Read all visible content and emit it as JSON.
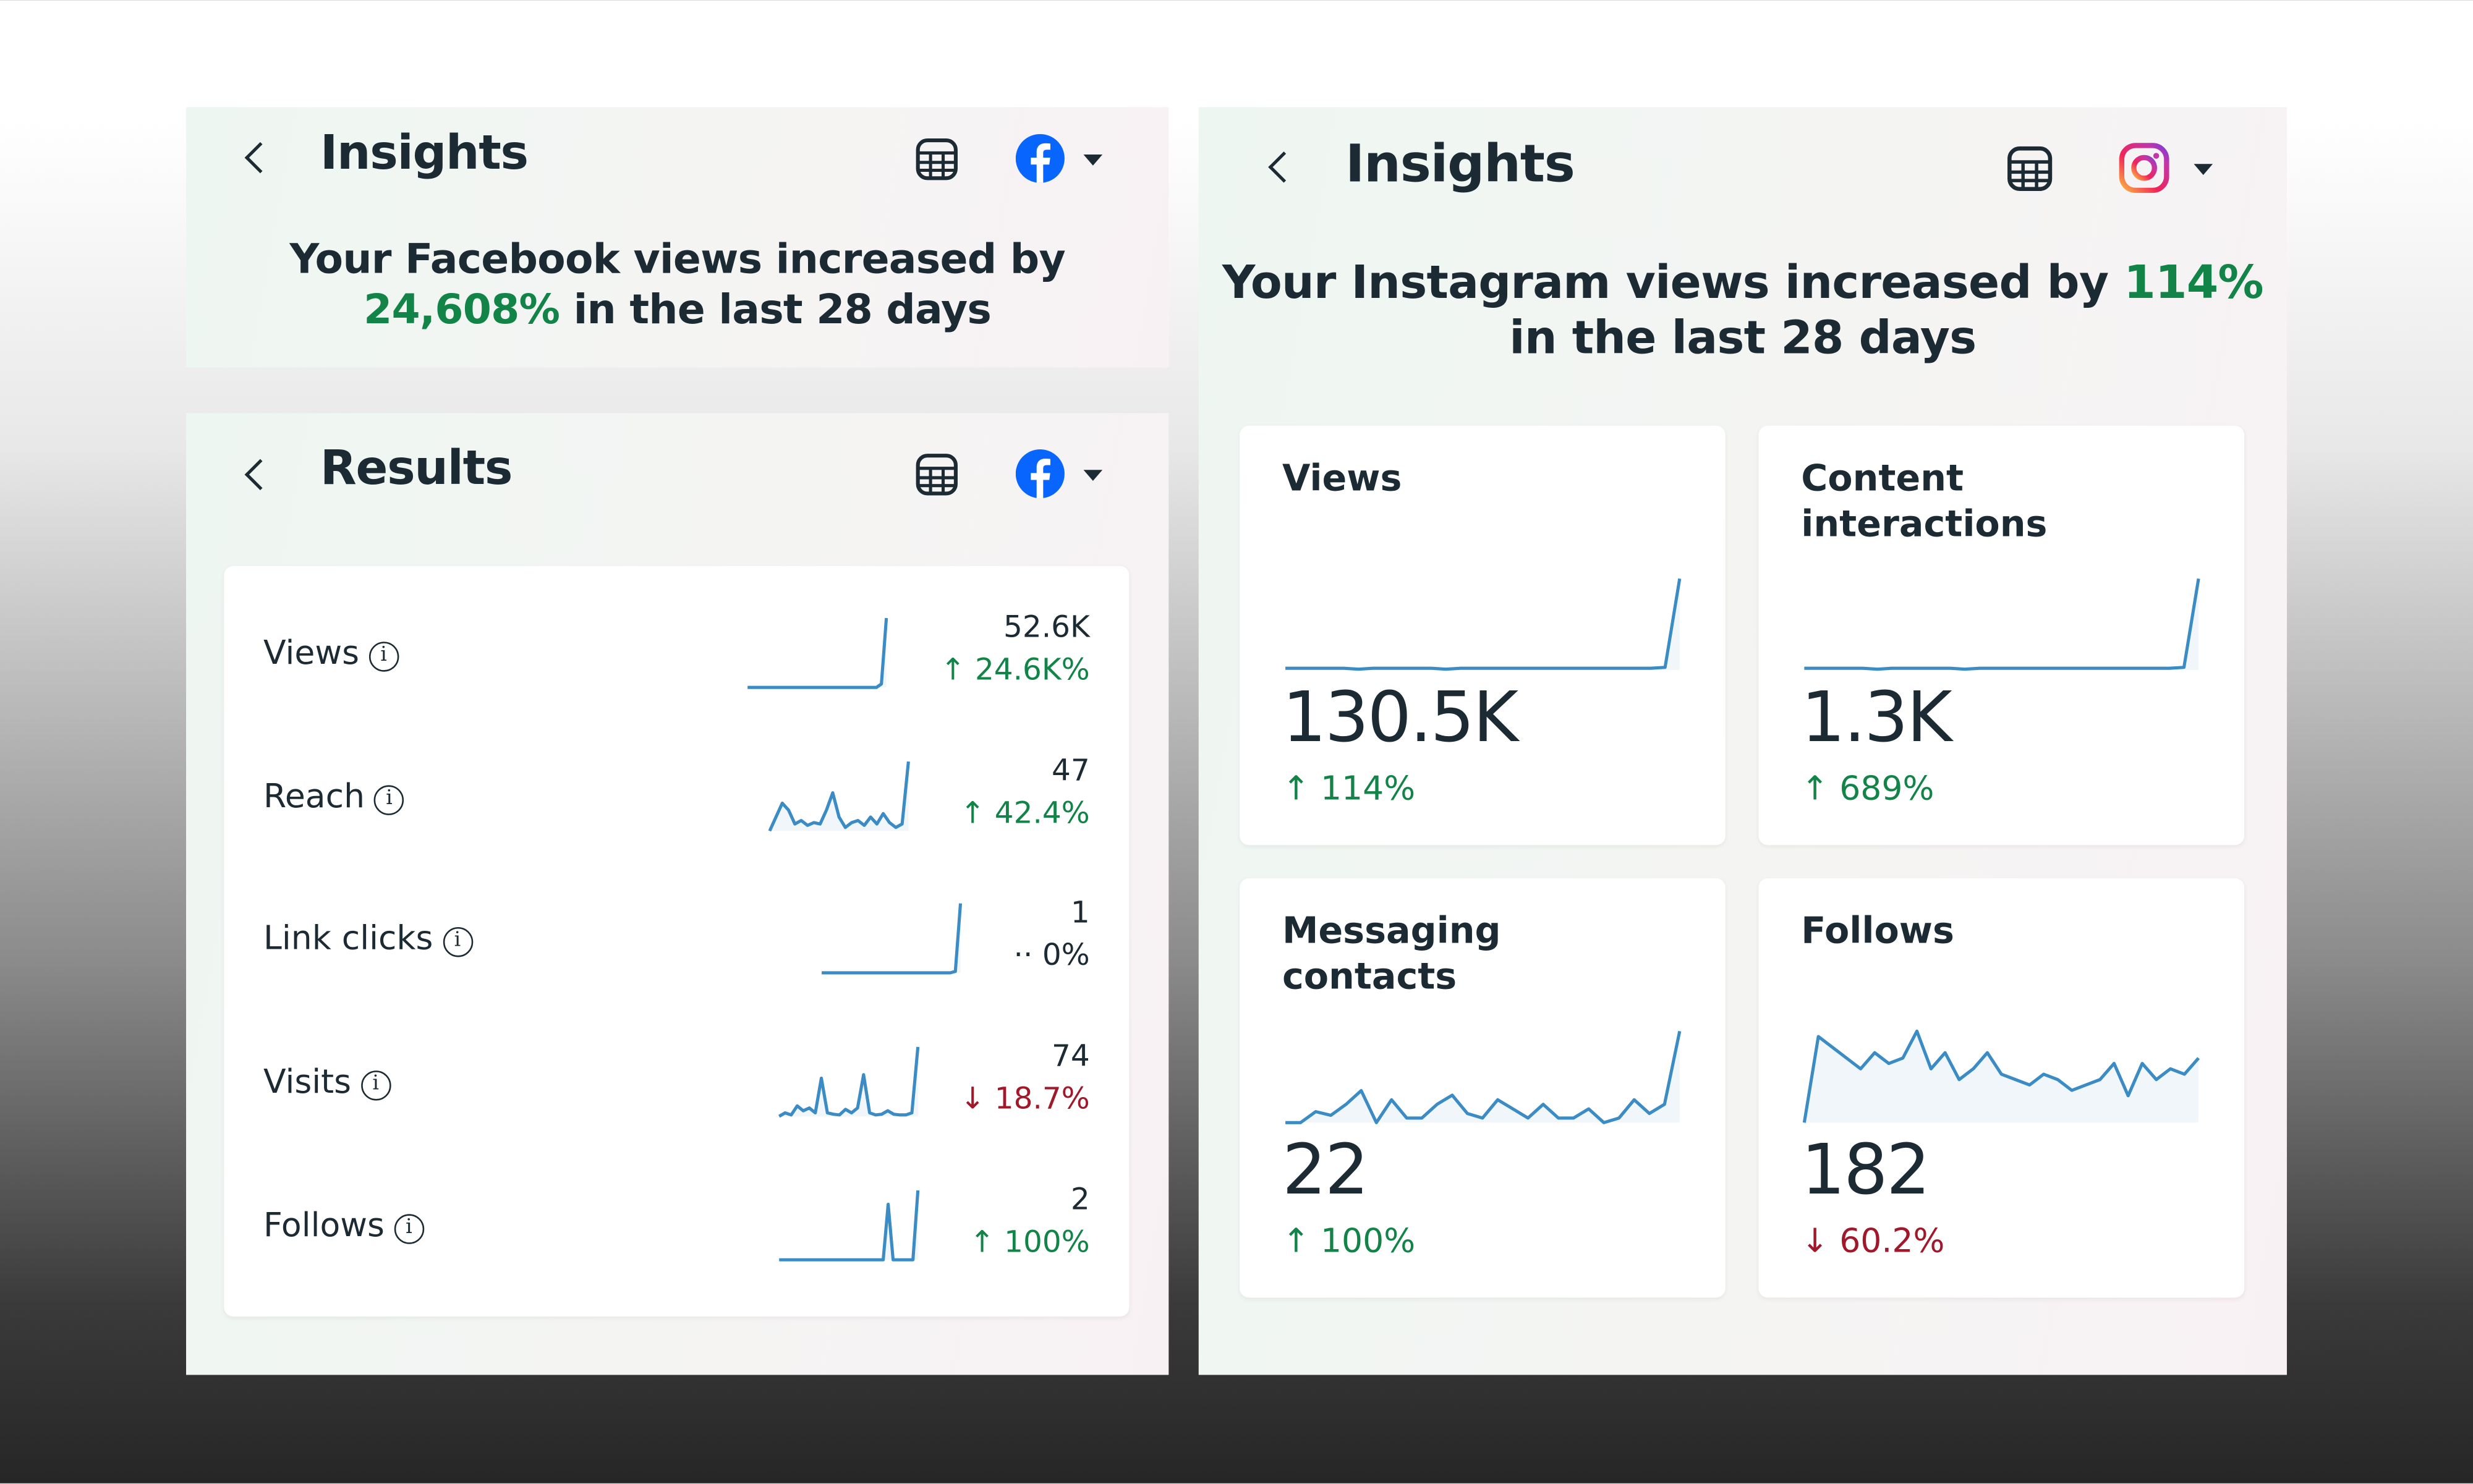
{
  "facebook_insights": {
    "title": "Insights",
    "headline_prefix": "Your Facebook views increased by",
    "headline_value": "24,608%",
    "headline_suffix": "in the last 28 days",
    "platform_icon": "facebook-icon"
  },
  "facebook_results": {
    "title": "Results",
    "platform_icon": "facebook-icon",
    "rows": [
      {
        "label": "Views",
        "value": "52.6K",
        "arrow": "↑",
        "change": "24.6K%",
        "trend": "up",
        "spark": [
          0,
          0,
          0,
          0,
          0,
          0,
          0,
          0,
          0,
          0,
          0,
          0,
          0,
          0,
          0,
          0,
          0,
          0,
          0,
          0,
          0,
          0,
          0,
          0,
          0,
          0,
          0,
          5,
          100
        ]
      },
      {
        "label": "Reach",
        "value": "47",
        "arrow": "↑",
        "change": "42.4%",
        "trend": "up",
        "spark": [
          0,
          20,
          40,
          30,
          10,
          15,
          8,
          12,
          10,
          30,
          55,
          20,
          5,
          12,
          15,
          8,
          20,
          10,
          25,
          12,
          5,
          10,
          100
        ]
      },
      {
        "label": "Link clicks",
        "value": "1",
        "arrow": "··",
        "change": "0%",
        "trend": "flat",
        "spark": [
          0,
          0,
          0,
          0,
          0,
          0,
          0,
          0,
          0,
          0,
          0,
          0,
          0,
          0,
          0,
          0,
          0,
          0,
          0,
          0,
          0,
          0,
          0,
          0,
          0,
          0,
          2,
          100
        ]
      },
      {
        "label": "Visits",
        "value": "74",
        "arrow": "↓",
        "change": "18.7%",
        "trend": "down",
        "spark": [
          0,
          5,
          2,
          15,
          8,
          12,
          5,
          55,
          5,
          3,
          2,
          10,
          5,
          12,
          60,
          5,
          2,
          3,
          8,
          3,
          2,
          2,
          5,
          100
        ]
      },
      {
        "label": "Follows",
        "value": "2",
        "arrow": "↑",
        "change": "100%",
        "trend": "up",
        "spark": [
          0,
          0,
          0,
          0,
          0,
          0,
          0,
          0,
          0,
          0,
          0,
          0,
          0,
          0,
          0,
          0,
          0,
          0,
          0,
          0,
          0,
          0,
          80,
          0,
          0,
          0,
          0,
          0,
          100
        ]
      }
    ]
  },
  "instagram_insights": {
    "title": "Insights",
    "platform_icon": "instagram-icon",
    "headline_prefix": "Your Instagram views increased by",
    "headline_value": "114%",
    "headline_suffix": "in the last 28 days",
    "cards": [
      {
        "title": "Views",
        "value": "130.5K",
        "arrow": "↑",
        "change": "114%",
        "trend": "up",
        "spark": [
          2,
          2,
          2,
          2,
          2,
          1,
          2,
          2,
          2,
          2,
          2,
          1,
          2,
          2,
          2,
          2,
          2,
          2,
          2,
          2,
          2,
          2,
          2,
          2,
          2,
          2,
          3,
          100
        ]
      },
      {
        "title": "Content interactions",
        "value": "1.3K",
        "arrow": "↑",
        "change": "689%",
        "trend": "up",
        "spark": [
          2,
          2,
          2,
          2,
          2,
          1,
          2,
          2,
          2,
          2,
          2,
          1,
          2,
          2,
          2,
          2,
          2,
          2,
          2,
          2,
          2,
          2,
          2,
          2,
          2,
          2,
          3,
          100
        ]
      },
      {
        "title": "Messaging contacts",
        "value": "22",
        "arrow": "↑",
        "change": "100%",
        "trend": "up",
        "spark": [
          0,
          0,
          12,
          8,
          20,
          35,
          0,
          25,
          5,
          5,
          20,
          30,
          10,
          5,
          25,
          15,
          5,
          20,
          5,
          5,
          15,
          0,
          5,
          25,
          10,
          20,
          100
        ]
      },
      {
        "title": "Follows",
        "value": "182",
        "arrow": "↓",
        "change": "60.2%",
        "trend": "down",
        "spark": [
          0,
          80,
          70,
          60,
          50,
          65,
          55,
          60,
          85,
          50,
          65,
          40,
          50,
          65,
          45,
          40,
          35,
          45,
          40,
          30,
          35,
          40,
          55,
          25,
          55,
          40,
          50,
          45,
          60
        ]
      }
    ]
  },
  "colors": {
    "green": "#128448",
    "red": "#a1182b",
    "spark": "#3b8bc5",
    "facebook": "#0866ff"
  }
}
